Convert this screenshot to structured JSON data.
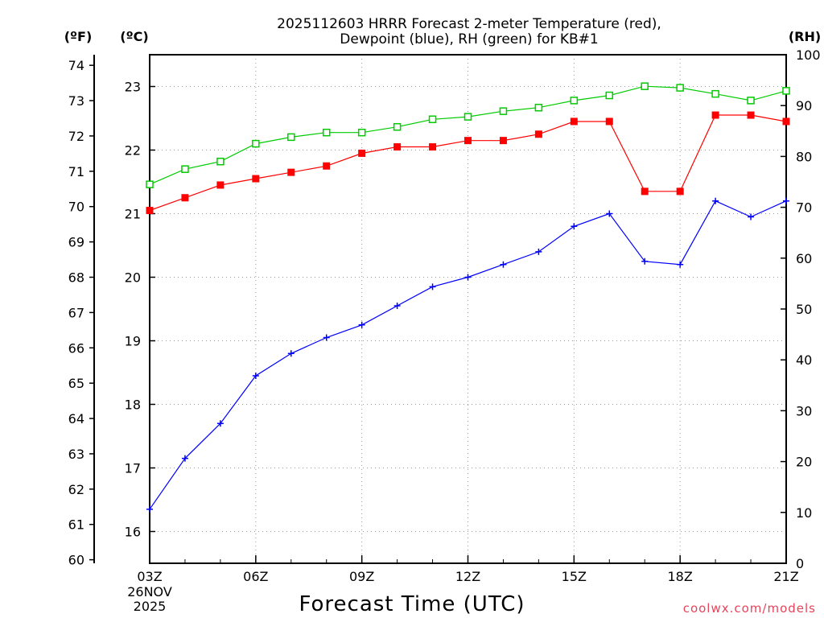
{
  "chart_data": {
    "type": "line",
    "title_line1": "2025112603 HRRR Forecast 2-meter Temperature (red),",
    "title_line2": "Dewpoint (blue), RH (green) for KB#1",
    "unit_f": "(ºF)",
    "unit_c": "(ºC)",
    "unit_rh": "(RH)",
    "xlabel": "Forecast Time (UTC)",
    "credit": "coolwx.com/models",
    "date_label": [
      "26NOV",
      "2025"
    ],
    "x_hours": [
      3,
      4,
      5,
      6,
      7,
      8,
      9,
      10,
      11,
      12,
      13,
      14,
      15,
      16,
      17,
      18,
      19,
      20,
      21
    ],
    "x_ticks": [
      {
        "hour": 3,
        "label": "03Z"
      },
      {
        "hour": 6,
        "label": "06Z"
      },
      {
        "hour": 9,
        "label": "09Z"
      },
      {
        "hour": 12,
        "label": "12Z"
      },
      {
        "hour": 15,
        "label": "15Z"
      },
      {
        "hour": 18,
        "label": "18Z"
      },
      {
        "hour": 21,
        "label": "21Z"
      }
    ],
    "xlim": [
      3,
      21
    ],
    "ylim_c": [
      15.5,
      23.5
    ],
    "celsius_ticks": [
      16,
      17,
      18,
      19,
      20,
      21,
      22,
      23
    ],
    "fahrenheit_ticks": [
      60,
      61,
      62,
      63,
      64,
      65,
      66,
      67,
      68,
      69,
      70,
      71,
      72,
      73,
      74
    ],
    "ylim_rh": [
      0,
      100
    ],
    "rh_ticks": [
      0,
      10,
      20,
      30,
      40,
      50,
      60,
      70,
      80,
      90,
      100
    ],
    "grid": true,
    "colors": {
      "temperature": "#ff0000",
      "dewpoint": "#0000ff",
      "rh": "#00cc00",
      "grid": "#999999"
    },
    "series": [
      {
        "name": "Temperature",
        "axis": "celsius",
        "values": [
          21.05,
          21.25,
          21.45,
          21.55,
          21.65,
          21.75,
          21.95,
          22.05,
          22.05,
          22.15,
          22.15,
          22.25,
          22.45,
          22.45,
          21.35,
          21.35,
          22.55,
          22.55,
          22.45
        ]
      },
      {
        "name": "Dewpoint",
        "axis": "celsius",
        "values": [
          16.35,
          17.15,
          17.7,
          18.45,
          18.8,
          19.05,
          19.25,
          19.55,
          19.85,
          20.0,
          20.2,
          20.4,
          20.8,
          21.0,
          20.25,
          20.2,
          21.2,
          20.95,
          21.2
        ]
      },
      {
        "name": "RH",
        "axis": "rh",
        "values": [
          74.5,
          77.5,
          79.0,
          82.5,
          83.8,
          84.7,
          84.7,
          85.8,
          87.3,
          87.8,
          88.9,
          89.6,
          91.0,
          92.0,
          93.8,
          93.5,
          92.3,
          91.0,
          92.9
        ]
      }
    ]
  }
}
